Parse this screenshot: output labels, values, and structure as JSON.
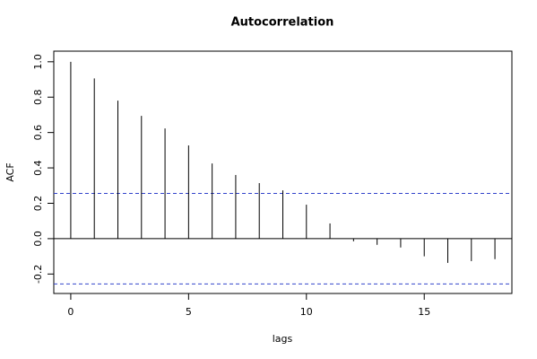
{
  "chart_data": {
    "type": "acf",
    "title": "Autocorrelation",
    "x_label": "lags",
    "y_label": "ACF",
    "x": [
      0,
      1,
      2,
      3,
      4,
      5,
      6,
      7,
      8,
      9,
      10,
      11,
      12,
      13,
      14,
      15,
      16,
      17,
      18
    ],
    "values": [
      1.0,
      0.906,
      0.78,
      0.694,
      0.623,
      0.527,
      0.425,
      0.36,
      0.314,
      0.273,
      0.192,
      0.086,
      -0.015,
      -0.035,
      -0.05,
      -0.1,
      -0.137,
      -0.127,
      -0.116
    ],
    "color": "#000000",
    "confidence_bounds": [
      0.256,
      -0.256
    ],
    "confidence_color": "#3344cc",
    "xlim": [
      -0.72,
      18.72
    ],
    "ylim": [
      -0.31,
      1.06
    ],
    "xticks": [
      0,
      5,
      10,
      15
    ],
    "yticks": [
      {
        "value": -0.2,
        "label": "-0.2"
      },
      {
        "value": 0.0,
        "label": "0.0"
      },
      0.2,
      0.4,
      0.6,
      0.8,
      {
        "value": 1.0,
        "label": "1.0"
      }
    ]
  }
}
